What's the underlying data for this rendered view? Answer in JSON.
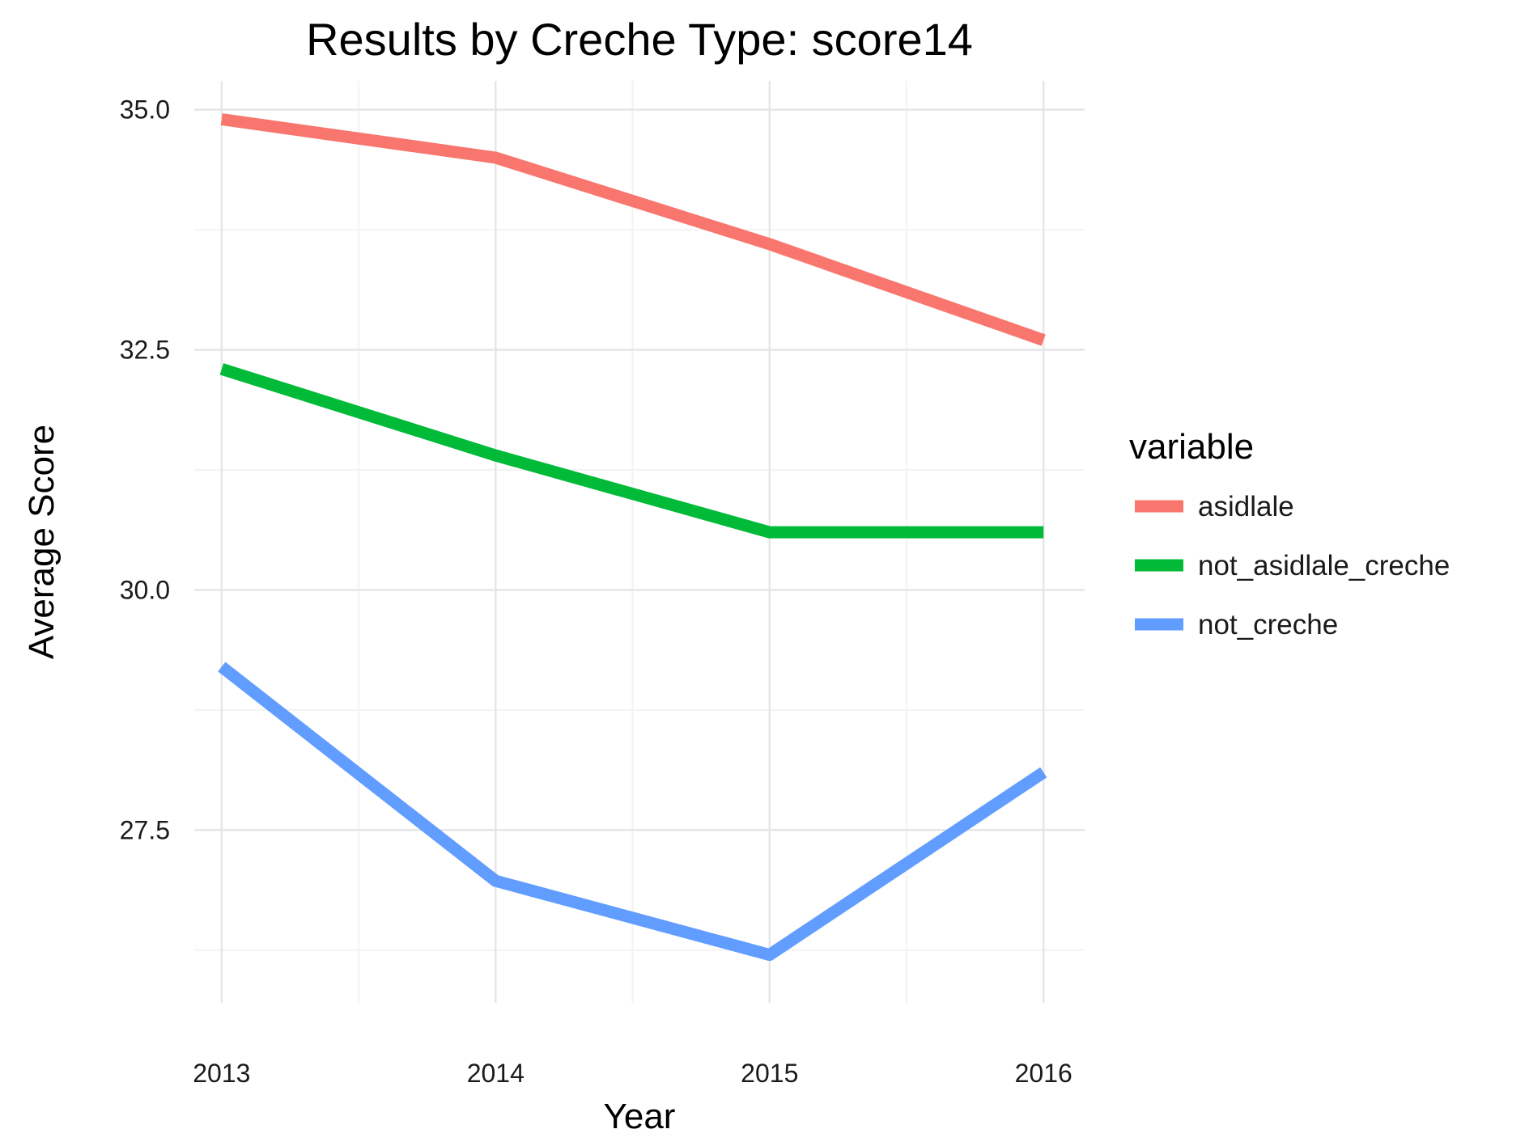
{
  "chart_data": {
    "type": "line",
    "title": "Results by Creche Type: score14",
    "xlabel": "Year",
    "ylabel": "Average Score",
    "x": [
      2013,
      2014,
      2015,
      2016
    ],
    "x_tick_labels": [
      "2013",
      "2014",
      "2015",
      "2016"
    ],
    "y_ticks": [
      27.5,
      30.0,
      32.5,
      35.0
    ],
    "y_tick_labels": [
      "27.5",
      "30.0",
      "32.5",
      "35.0"
    ],
    "ylim": [
      25.7,
      35.3
    ],
    "xlim": [
      2012.9,
      2016.15
    ],
    "grid": true,
    "legend": {
      "title": "variable",
      "position": "right"
    },
    "series": [
      {
        "name": "asidlale",
        "color": "#F8766D",
        "values": [
          34.9,
          34.5,
          33.6,
          32.6
        ]
      },
      {
        "name": "not_asidlale_creche",
        "color": "#00BA38",
        "values": [
          32.3,
          31.4,
          30.6,
          30.6
        ]
      },
      {
        "name": "not_creche",
        "color": "#619CFF",
        "values": [
          29.2,
          26.97,
          26.2,
          28.1
        ]
      }
    ]
  }
}
